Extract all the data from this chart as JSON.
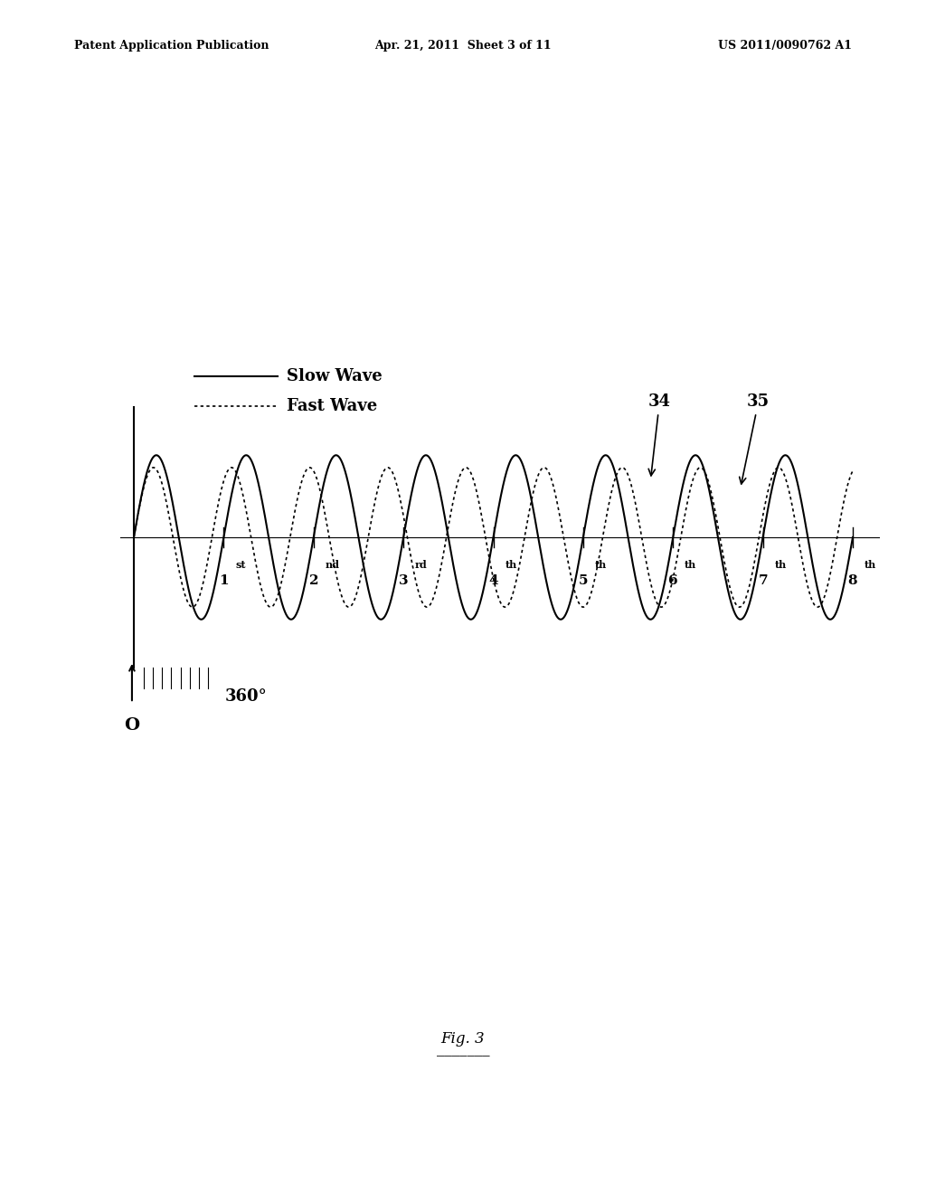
{
  "title_left": "Patent Application Publication",
  "title_center": "Apr. 21, 2011  Sheet 3 of 11",
  "title_right": "US 2011/0090762 A1",
  "fig_label": "Fig. 3",
  "slow_wave_label": "Slow Wave",
  "fast_wave_label": "Fast Wave",
  "slow_wave_freq": 1.0,
  "fast_wave_freq": 1.15,
  "slow_wave_amplitude": 1.0,
  "fast_wave_amplitude": 0.85,
  "num_cycles": 8,
  "ordinal_labels": [
    "1st",
    "2nd",
    "3rd",
    "4th",
    "5th",
    "6th",
    "7th",
    "8th"
  ],
  "ref_numbers": [
    "34",
    "35"
  ],
  "ref34_cycle": 6,
  "ref35_cycle": 7,
  "degree_label": "360°",
  "origin_label": "O",
  "background_color": "#ffffff",
  "wave_color": "#000000",
  "axis_color": "#000000"
}
